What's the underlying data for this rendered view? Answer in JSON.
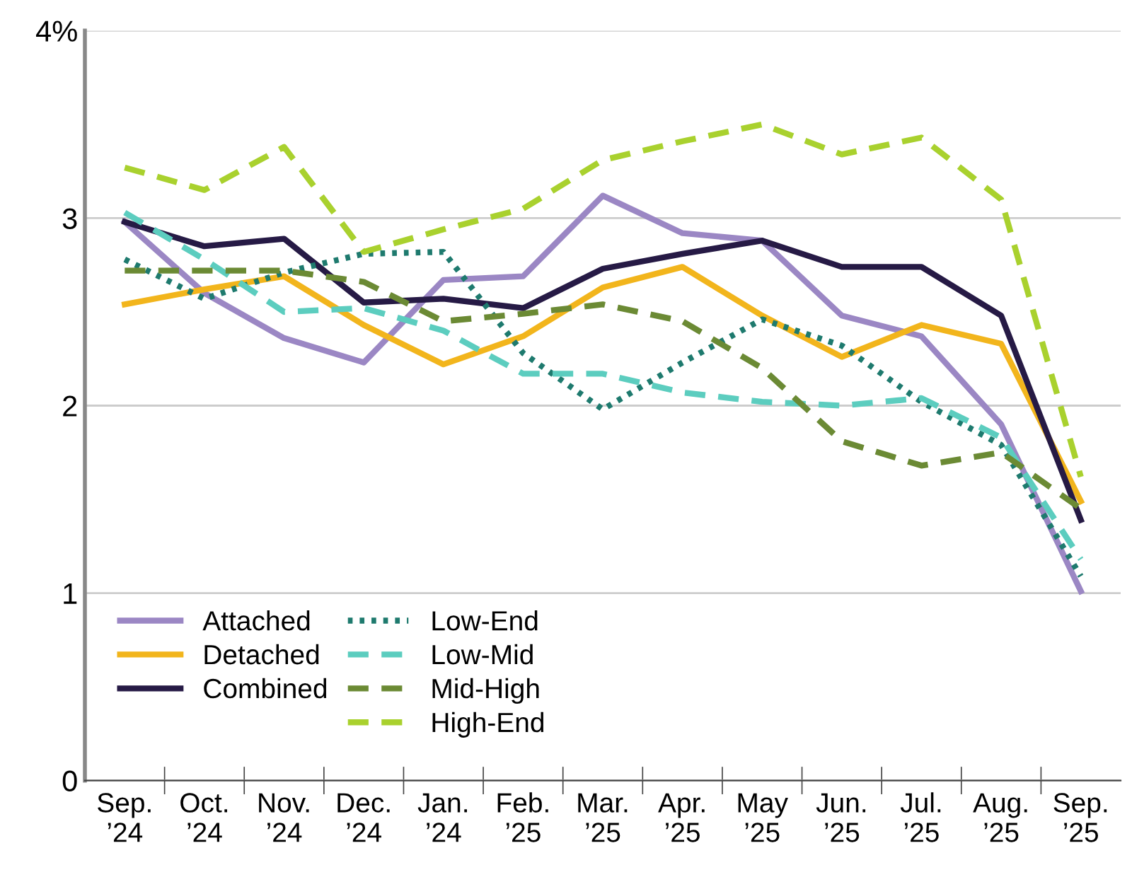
{
  "chart_data": {
    "type": "line",
    "categories": [
      "Sep.\n’24",
      "Oct.\n’24",
      "Nov.\n’24",
      "Dec.\n’24",
      "Jan.\n’24",
      "Feb.\n’25",
      "Mar.\n’25",
      "Apr.\n’25",
      "May\n’25",
      "Jun.\n’25",
      "Jul.\n’25",
      "Aug.\n’25",
      "Sep.\n’25"
    ],
    "series": [
      {
        "name": "Attached",
        "color": "#9b87c4",
        "line_style": "solid",
        "values": [
          2.98,
          2.6,
          2.36,
          2.23,
          2.67,
          2.69,
          3.12,
          2.92,
          2.88,
          2.48,
          2.37,
          1.9,
          1.01
        ]
      },
      {
        "name": "Detached",
        "color": "#f2b51c",
        "line_style": "solid",
        "values": [
          2.54,
          2.62,
          2.69,
          2.43,
          2.22,
          2.37,
          2.63,
          2.74,
          2.48,
          2.26,
          2.43,
          2.33,
          1.49
        ]
      },
      {
        "name": "Combined",
        "color": "#261a45",
        "line_style": "solid",
        "values": [
          2.98,
          2.85,
          2.89,
          2.55,
          2.57,
          2.52,
          2.73,
          2.81,
          2.88,
          2.74,
          2.74,
          2.48,
          1.39
        ]
      },
      {
        "name": "Low-End",
        "color": "#1e7a6e",
        "line_style": "dotted",
        "values": [
          2.78,
          2.57,
          2.71,
          2.81,
          2.82,
          2.28,
          1.98,
          2.23,
          2.46,
          2.32,
          2.02,
          1.79,
          1.09
        ]
      },
      {
        "name": "Low-Mid",
        "color": "#5ccdbf",
        "line_style": "dashed",
        "values": [
          3.03,
          2.78,
          2.5,
          2.52,
          2.4,
          2.17,
          2.17,
          2.07,
          2.02,
          2.0,
          2.04,
          1.83,
          1.18
        ]
      },
      {
        "name": "Mid-High",
        "color": "#6b8a34",
        "line_style": "dashed",
        "values": [
          2.72,
          2.72,
          2.72,
          2.66,
          2.45,
          2.49,
          2.54,
          2.45,
          2.2,
          1.81,
          1.68,
          1.75,
          1.45
        ]
      },
      {
        "name": "High-End",
        "color": "#a9d12e",
        "line_style": "dashed",
        "values": [
          3.27,
          3.15,
          3.38,
          2.82,
          2.94,
          3.05,
          3.31,
          3.41,
          3.5,
          3.34,
          3.43,
          3.1,
          1.62
        ]
      }
    ],
    "ylim": [
      0,
      4
    ],
    "yticks": [
      0,
      1,
      2,
      3,
      {
        "value": 4,
        "label": "4%"
      }
    ],
    "grid": "y",
    "legend": "bottom left"
  }
}
